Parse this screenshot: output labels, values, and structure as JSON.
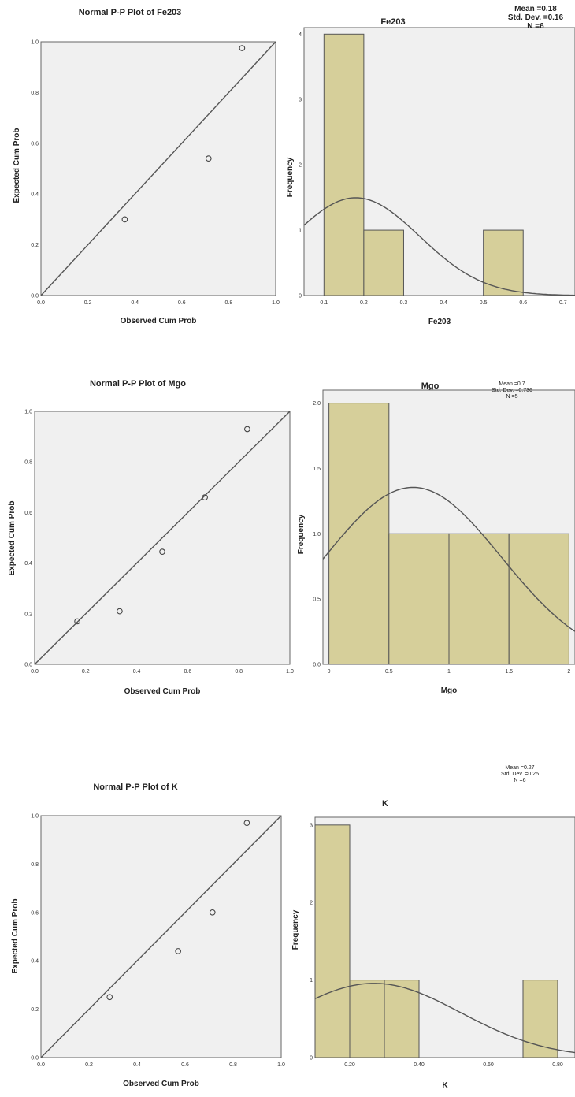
{
  "colors": {
    "panel_bg": "#f0f0f0",
    "bar_fill": "#d6cf9a",
    "bar_stroke": "#555555",
    "line": "#555555",
    "marker": "#444444"
  },
  "chart_data": [
    {
      "type": "scatter",
      "title": "Normal P-P Plot of Fe203",
      "xlabel": "Observed Cum Prob",
      "ylabel": "Expected Cum Prob",
      "xlim": [
        0,
        1
      ],
      "ylim": [
        0,
        1
      ],
      "ticks": [
        "0.0",
        "0.2",
        "0.4",
        "0.6",
        "0.8",
        "1.0"
      ],
      "reference_line": "y = x",
      "points": [
        {
          "x": 0.357,
          "y": 0.3
        },
        {
          "x": 0.714,
          "y": 0.54
        },
        {
          "x": 0.857,
          "y": 0.975
        }
      ]
    },
    {
      "type": "bar",
      "title": "Fe203",
      "xlabel": "Fe203",
      "ylabel": "Frequency",
      "xlim": [
        0.05,
        0.73
      ],
      "ylim": [
        0,
        4.1
      ],
      "xticks": [
        "0.1",
        "0.2",
        "0.3",
        "0.4",
        "0.5",
        "0.6",
        "0.7"
      ],
      "yticks": [
        "0",
        "1",
        "2",
        "3",
        "4"
      ],
      "bins": [
        {
          "start": 0.1,
          "end": 0.2,
          "count": 4
        },
        {
          "start": 0.2,
          "end": 0.3,
          "count": 1
        },
        {
          "start": 0.5,
          "end": 0.6,
          "count": 1
        }
      ],
      "normal_curve": {
        "mean": 0.18,
        "sd": 0.16,
        "n": 6,
        "binwidth": 0.1
      },
      "stats": [
        "Mean =0.18",
        "Std. Dev. =0.16",
        "N =6"
      ]
    },
    {
      "type": "scatter",
      "title": "Normal P-P Plot of Mgo",
      "xlabel": "Observed Cum Prob",
      "ylabel": "Expected Cum Prob",
      "xlim": [
        0,
        1
      ],
      "ylim": [
        0,
        1
      ],
      "ticks": [
        "0.0",
        "0.2",
        "0.4",
        "0.6",
        "0.8",
        "1.0"
      ],
      "reference_line": "y = x",
      "points": [
        {
          "x": 0.167,
          "y": 0.17
        },
        {
          "x": 0.333,
          "y": 0.21
        },
        {
          "x": 0.5,
          "y": 0.445
        },
        {
          "x": 0.667,
          "y": 0.66
        },
        {
          "x": 0.833,
          "y": 0.93
        }
      ]
    },
    {
      "type": "bar",
      "title": "Mgo",
      "xlabel": "Mgo",
      "ylabel": "Frequency",
      "xlim": [
        -0.05,
        2.05
      ],
      "ylim": [
        0,
        2.1
      ],
      "xticks": [
        "0",
        "0.5",
        "1",
        "1.5",
        "2"
      ],
      "yticks": [
        "0.0",
        "0.5",
        "1.0",
        "1.5",
        "2.0"
      ],
      "bins": [
        {
          "start": 0,
          "end": 0.5,
          "count": 2
        },
        {
          "start": 0.5,
          "end": 1.0,
          "count": 1
        },
        {
          "start": 1.0,
          "end": 1.5,
          "count": 1
        },
        {
          "start": 1.5,
          "end": 2.0,
          "count": 1
        }
      ],
      "normal_curve": {
        "mean": 0.7,
        "sd": 0.736,
        "n": 5,
        "binwidth": 0.5
      },
      "stats": [
        "Mean =0.7",
        "Std. Dev. =0.736",
        "N =5"
      ]
    },
    {
      "type": "scatter",
      "title": "Normal P-P Plot of K",
      "xlabel": "Observed Cum Prob",
      "ylabel": "Expected Cum Prob",
      "xlim": [
        0,
        1
      ],
      "ylim": [
        0,
        1
      ],
      "ticks": [
        "0.0",
        "0.2",
        "0.4",
        "0.6",
        "0.8",
        "1.0"
      ],
      "reference_line": "y = x",
      "points": [
        {
          "x": 0.286,
          "y": 0.25
        },
        {
          "x": 0.571,
          "y": 0.44
        },
        {
          "x": 0.714,
          "y": 0.6
        },
        {
          "x": 0.857,
          "y": 0.97
        }
      ]
    },
    {
      "type": "bar",
      "title": "K",
      "xlabel": "K",
      "ylabel": "Frequency",
      "xlim": [
        0.1,
        0.85
      ],
      "ylim": [
        0,
        3.1
      ],
      "xticks": [
        "0.20",
        "0.40",
        "0.60",
        "0.80"
      ],
      "xtick_values": [
        0.2,
        0.4,
        0.6,
        0.8
      ],
      "yticks": [
        "0",
        "1",
        "2",
        "3"
      ],
      "bins": [
        {
          "start": 0.1,
          "end": 0.2,
          "count": 3
        },
        {
          "start": 0.2,
          "end": 0.3,
          "count": 1
        },
        {
          "start": 0.3,
          "end": 0.4,
          "count": 1
        },
        {
          "start": 0.7,
          "end": 0.8,
          "count": 1
        }
      ],
      "normal_curve": {
        "mean": 0.27,
        "sd": 0.25,
        "n": 6,
        "binwidth": 0.1
      },
      "stats": [
        "Mean =0.27",
        "Std. Dev. =0.25",
        "N =6"
      ]
    }
  ]
}
